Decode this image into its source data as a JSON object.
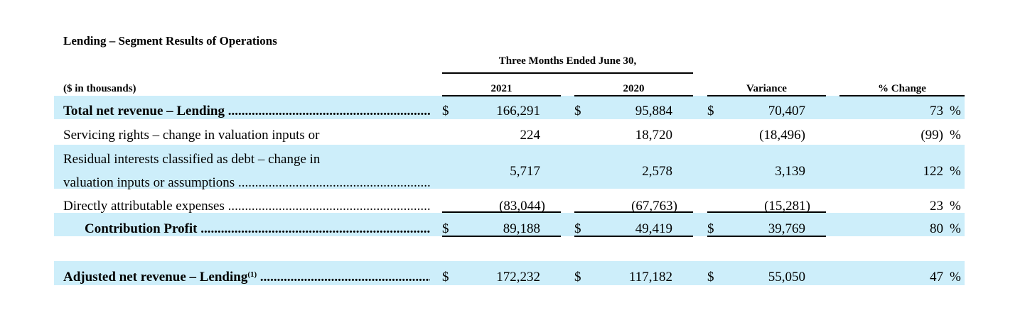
{
  "title": "Lending – Segment Results of Operations",
  "period_header": "Three Months Ended June 30,",
  "units_label": "($ in thousands)",
  "columns": {
    "c2021": "2021",
    "c2020": "2020",
    "variance": "Variance",
    "pct_change": "% Change"
  },
  "dots": "......................................................................................................................................",
  "rows": [
    {
      "label": "Total net revenue – Lending",
      "v2021_cur": "$",
      "v2021": "166,291",
      "v2020_cur": "$",
      "v2020": "95,884",
      "var_cur": "$",
      "var": "70,407",
      "pct": "73",
      "pct_sign": "%"
    },
    {
      "label": "Servicing rights – change in valuation inputs or",
      "v2021": "224",
      "v2020": "18,720",
      "var": "(18,496)",
      "pct": "(99)",
      "pct_sign": "%"
    },
    {
      "label_line1": "Residual interests classified as debt – change in",
      "label_line2": "valuation inputs or assumptions",
      "v2021": "5,717",
      "v2020": "2,578",
      "var": "3,139",
      "pct": "122",
      "pct_sign": "%"
    },
    {
      "label": "Directly attributable expenses",
      "v2021": "(83,044)",
      "v2020": "(67,763)",
      "var": "(15,281)",
      "pct": "23",
      "pct_sign": "%"
    },
    {
      "label": "Contribution Profit",
      "v2021_cur": "$",
      "v2021": "89,188",
      "v2020_cur": "$",
      "v2020": "49,419",
      "var_cur": "$",
      "var": "39,769",
      "pct": "80",
      "pct_sign": "%"
    },
    {
      "label": "Adjusted net revenue – Lending",
      "footnote": "(1)",
      "v2021_cur": "$",
      "v2021": "172,232",
      "v2020_cur": "$",
      "v2020": "117,182",
      "var_cur": "$",
      "var": "55,050",
      "pct": "47",
      "pct_sign": "%"
    }
  ]
}
